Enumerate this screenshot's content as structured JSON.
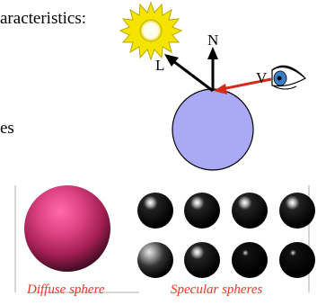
{
  "text": {
    "heading": "aracteristics:",
    "bullet_fragment": "es"
  },
  "diagram": {
    "normal_label": "N",
    "light_label": "L",
    "view_label": "V",
    "sphere_color": "#a9a9f5",
    "view_vector_color": "#d42a1a",
    "sun_color": "#f5e400"
  },
  "figure": {
    "diffuse_color": "#d43a6f",
    "specular_color": "#000000",
    "specular_sphere_count": 8
  },
  "captions": {
    "diffuse": "Diffuse sphere",
    "specular": "Specular spheres",
    "color": "#e8392a"
  }
}
